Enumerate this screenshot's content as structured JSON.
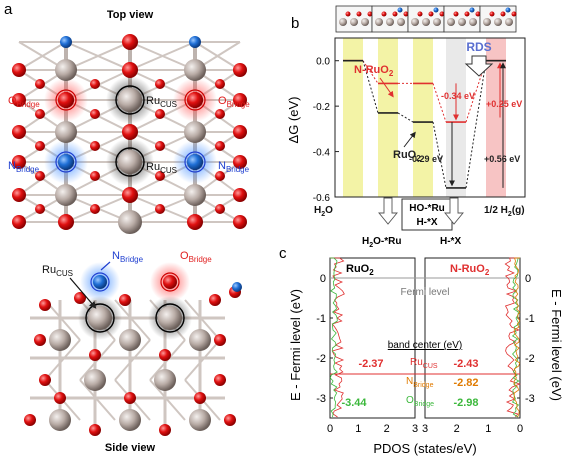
{
  "panel_a": {
    "label": "a",
    "top_title": "Top view",
    "side_title": "Side view",
    "labels": {
      "o_bridge": "O",
      "o_sub": "Bridge",
      "ru_cus": "Ru",
      "ru_sub": "CUS",
      "n_bridge": "N",
      "n_sub": "Bridge"
    }
  },
  "panel_b": {
    "label": "b",
    "rds": "RDS",
    "n_ruo2": "N-RuO",
    "n_ruo2_sub": "2",
    "ruo2": "RuO",
    "ruo2_sub": "2",
    "ann": {
      "a1": "-0.34 eV",
      "a2": "+0.25 eV",
      "a3": "-0.29 eV",
      "a4": "+0.56 eV"
    },
    "step_labels": {
      "h2o": "H",
      "h2o_b": "2",
      "h2o_c": "O",
      "ho_ru": "HO-*Ru",
      "h_x": "H-*X",
      "half_h2": "1/2 H",
      "half_h2_b": "2",
      "half_h2_c": "(g)",
      "h2o_ru": "H",
      "h2o_ru_b": "2",
      "h2o_ru_c": "O-*Ru",
      "h_x2": "H-*X"
    }
  },
  "panel_c": {
    "label": "c",
    "ruo2": "RuO",
    "ruo2_sub": "2",
    "n_ruo2": "N-RuO",
    "n_ruo2_sub": "2",
    "fermi": "Fermi level",
    "band_center": "band center (eV)",
    "ru": "Ru",
    "ru_sub": "CUS",
    "n": "N",
    "n_sub": "Bridge",
    "o": "O",
    "o_sub": "Bridge",
    "vals": {
      "ru_left": "-2.37",
      "ru_right": "-2.43",
      "n_right": "-2.82",
      "o_left": "-3.44",
      "o_right": "-2.98"
    },
    "xlabel": "PDOS (states/eV)",
    "ylabel_left": "E - Fermi level (eV)",
    "ylabel_right": "E - Fermi level (eV)"
  },
  "chart_data": [
    {
      "type": "line",
      "title": "",
      "ylabel": "ΔG (eV)",
      "ylim": [
        -0.6,
        0.1
      ],
      "yticks": [
        0.0,
        -0.2,
        -0.4,
        -0.6
      ],
      "categories": [
        "H2O",
        "H2O-*Ru",
        "HO-*Ru / H-*X",
        "H-*X",
        "1/2 H2(g)"
      ],
      "series": [
        {
          "name": "N-RuO2",
          "color": "#e03030",
          "values": [
            0.0,
            -0.1,
            -0.1,
            -0.27,
            0.0
          ]
        },
        {
          "name": "RuO2",
          "color": "#222222",
          "values": [
            0.0,
            -0.23,
            -0.27,
            -0.56,
            0.0
          ]
        }
      ],
      "annotations": [
        "RDS",
        "-0.34 eV",
        "+0.25 eV",
        "-0.29 eV",
        "+0.56 eV"
      ]
    },
    {
      "type": "line",
      "title": "",
      "xlabel": "PDOS (states/eV)",
      "ylabel": "E - Fermi level (eV)",
      "ylim": [
        -3.5,
        0.5
      ],
      "panels": [
        "RuO2",
        "N-RuO2"
      ],
      "left_xticks": [
        0,
        1,
        2,
        3
      ],
      "right_xticks": [
        3,
        2,
        1,
        0
      ],
      "band_centers": {
        "RuO2": {
          "Ru_CUS": -2.37,
          "O_Bridge": -3.44
        },
        "N-RuO2": {
          "Ru_CUS": -2.43,
          "N_Bridge": -2.82,
          "O_Bridge": -2.98
        }
      }
    }
  ]
}
